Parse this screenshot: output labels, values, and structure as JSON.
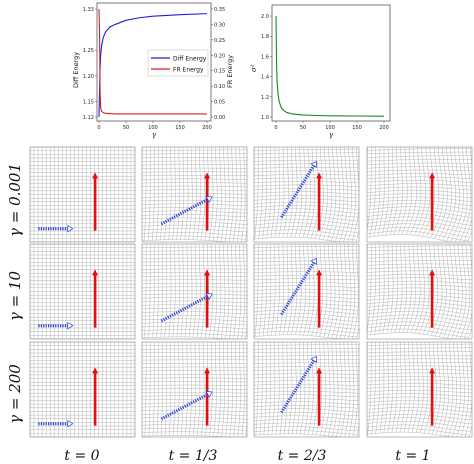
{
  "figure": {
    "top_left_plot": {
      "ylabel_left": "Diff Energy",
      "ylabel_right": "FR Energy",
      "xlabel": "γ",
      "left_ticks": [
        "1.33",
        "1.25",
        "1.20",
        "1.15",
        "1.12"
      ],
      "right_ticks": [
        "0.35",
        "0.30",
        "0.25",
        "0.20",
        "0.15",
        "0.10",
        "0.05",
        "0.00"
      ],
      "x_ticks": [
        "0",
        "50",
        "100",
        "150",
        "200"
      ],
      "legend": [
        {
          "label": "Diff Energy",
          "color": "#1f1fd6"
        },
        {
          "label": "FR Energy",
          "color": "#d62020"
        }
      ]
    },
    "top_right_plot": {
      "ylabel": "σ²",
      "xlabel": "γ",
      "y_ticks": [
        "2.0",
        "1.8",
        "1.6",
        "1.4",
        "1.2",
        "1.0"
      ],
      "x_ticks": [
        "0",
        "50",
        "100",
        "150",
        "200"
      ],
      "color": "#1a8a1a"
    },
    "row_labels": [
      "γ = 0.001",
      "γ = 10",
      "γ = 200"
    ],
    "col_labels": [
      "t = 0",
      "t = 1/3",
      "t = 2/3",
      "t = 1"
    ]
  },
  "chart_data": [
    {
      "type": "line",
      "xlabel": "γ",
      "ylabel": "Diff Energy",
      "ylabel_right": "FR Energy",
      "xlim": [
        0,
        200
      ],
      "ylim": [
        1.12,
        1.33
      ],
      "ylim_right": [
        0.0,
        0.35
      ],
      "series": [
        {
          "name": "Diff Energy",
          "axis": "left",
          "x": [
            0,
            1,
            2,
            3,
            5,
            8,
            12,
            20,
            30,
            50,
            75,
            100,
            150,
            200
          ],
          "values": [
            1.12,
            1.17,
            1.215,
            1.24,
            1.26,
            1.275,
            1.285,
            1.295,
            1.3,
            1.308,
            1.313,
            1.316,
            1.319,
            1.321
          ]
        },
        {
          "name": "FR Energy",
          "axis": "right",
          "x": [
            0,
            1,
            2,
            3,
            5,
            8,
            12,
            20,
            30,
            50,
            100,
            200
          ],
          "values": [
            0.35,
            0.28,
            0.08,
            0.03,
            0.018,
            0.014,
            0.012,
            0.011,
            0.01,
            0.01,
            0.01,
            0.01
          ]
        }
      ]
    },
    {
      "type": "line",
      "xlabel": "γ",
      "ylabel": "σ²",
      "xlim": [
        0,
        200
      ],
      "ylim": [
        1.0,
        2.05
      ],
      "series": [
        {
          "name": "",
          "x": [
            0,
            1,
            2,
            4,
            6,
            10,
            15,
            20,
            30,
            50,
            75,
            100,
            150,
            200
          ],
          "values": [
            2.0,
            1.55,
            1.35,
            1.22,
            1.15,
            1.09,
            1.06,
            1.045,
            1.03,
            1.02,
            1.015,
            1.012,
            1.01,
            1.008
          ]
        }
      ]
    }
  ]
}
